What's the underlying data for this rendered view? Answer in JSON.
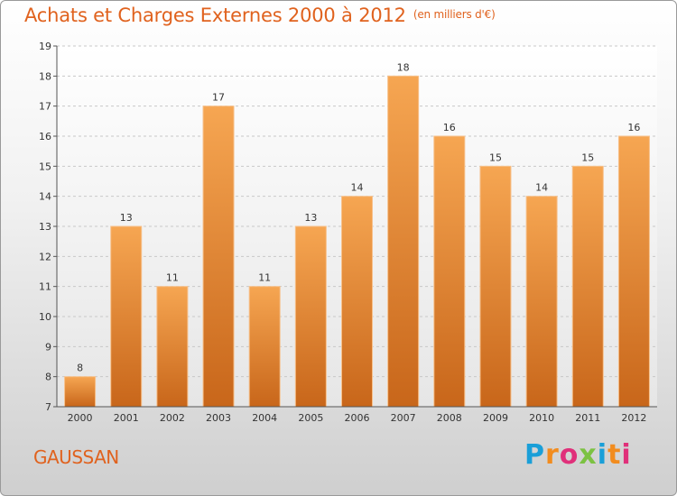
{
  "header": {
    "title": "Achats et Charges Externes 2000 à 2012",
    "unit": "(en milliers d'€)"
  },
  "footer": {
    "commune": "GAUSSAN",
    "logo": {
      "text": "Proxiti",
      "colors": [
        "#1a9fd8",
        "#f28c1e",
        "#e0307a",
        "#7cc242",
        "#1a9fd8",
        "#f28c1e",
        "#e0307a"
      ]
    }
  },
  "colors": {
    "accent": "#e0621e",
    "bar_top": "#f6a652",
    "bar_bottom": "#c8661a"
  },
  "chart_data": {
    "type": "bar",
    "title": "Achats et Charges Externes 2000 à 2012",
    "subtitle": "(en milliers d'€)",
    "categories": [
      "2000",
      "2001",
      "2002",
      "2003",
      "2004",
      "2005",
      "2006",
      "2007",
      "2008",
      "2009",
      "2010",
      "2011",
      "2012"
    ],
    "values": [
      8,
      13,
      11,
      17,
      11,
      13,
      14,
      18,
      16,
      15,
      14,
      15,
      16
    ],
    "ylim": [
      7,
      19
    ],
    "yticks": [
      7,
      8,
      9,
      10,
      11,
      12,
      13,
      14,
      15,
      16,
      17,
      18,
      19
    ],
    "grid": "horizontal dashed",
    "data_labels": true
  }
}
